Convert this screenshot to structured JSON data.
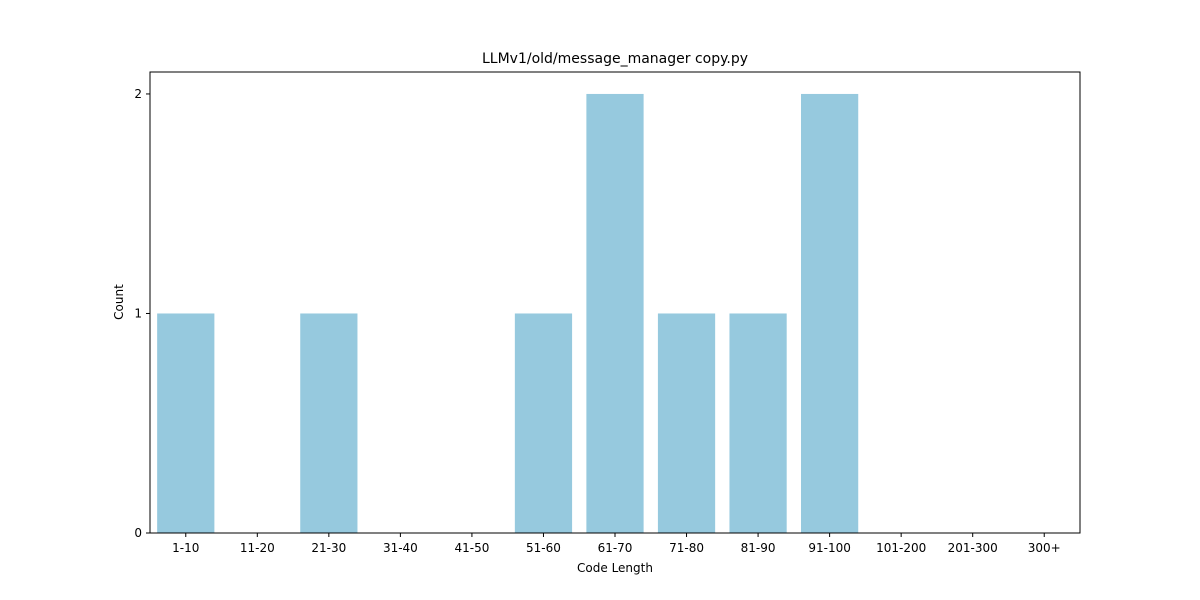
{
  "chart_data": {
    "type": "bar",
    "title": "LLMv1/old/message_manager copy.py",
    "xlabel": "Code Length",
    "ylabel": "Count",
    "categories": [
      "1-10",
      "11-20",
      "21-30",
      "31-40",
      "41-50",
      "51-60",
      "61-70",
      "71-80",
      "81-90",
      "91-100",
      "101-200",
      "201-300",
      "300+"
    ],
    "values": [
      1,
      0,
      1,
      0,
      0,
      1,
      2,
      1,
      1,
      2,
      0,
      0,
      0
    ],
    "ylim": [
      0,
      2.1
    ],
    "yticks": [
      0,
      1,
      2
    ],
    "grid": false,
    "legend": "none",
    "bar_color": "#96c9de"
  }
}
